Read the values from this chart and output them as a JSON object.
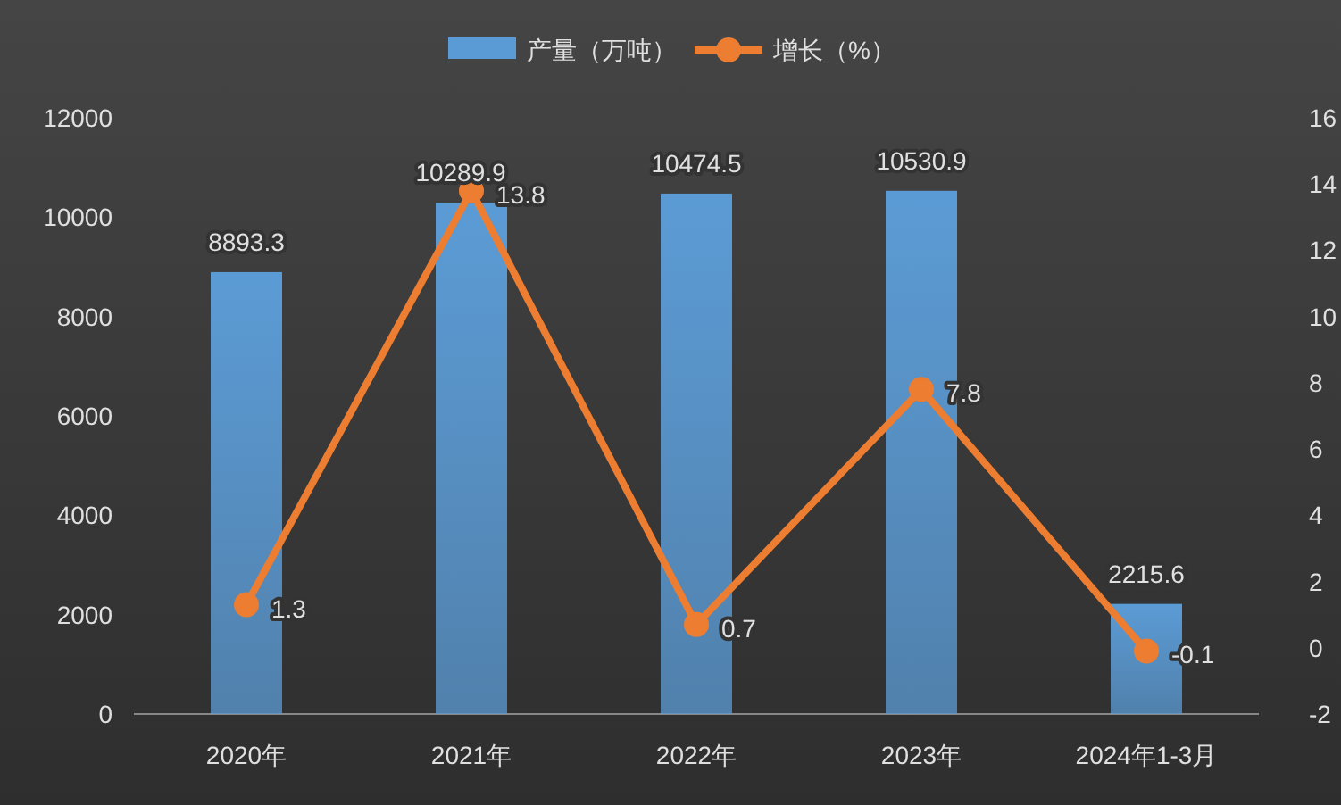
{
  "chart_data": {
    "type": "bar",
    "categories": [
      "2020年",
      "2021年",
      "2022年",
      "2023年",
      "2024年1-3月"
    ],
    "series": [
      {
        "name": "产量（万吨）",
        "color": "#5b9bd5",
        "values": [
          8893.3,
          10289.9,
          10474.5,
          10530.9,
          2215.6
        ]
      },
      {
        "name": "增长（%）",
        "color": "#ed7d31",
        "type": "line",
        "axis": "y2",
        "values": [
          1.3,
          13.8,
          0.7,
          7.8,
          -0.1
        ]
      }
    ],
    "ylim": [
      0,
      12000
    ],
    "yticks": [
      0,
      2000,
      4000,
      6000,
      8000,
      10000,
      12000
    ],
    "y2lim": [
      -2,
      16
    ],
    "y2ticks": [
      -2,
      0,
      2,
      4,
      6,
      8,
      10,
      12,
      14,
      16
    ],
    "legend": "top",
    "marker": "circle",
    "data_labels": true
  }
}
